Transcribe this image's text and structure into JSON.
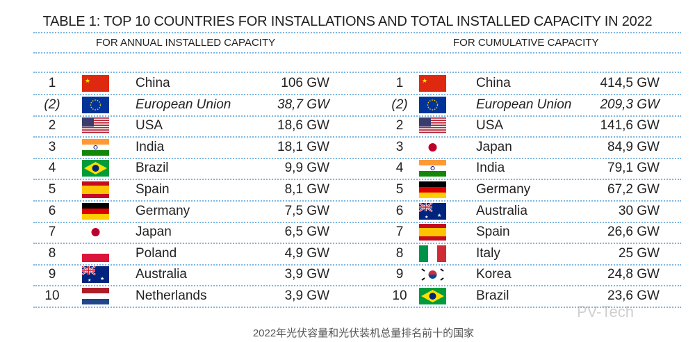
{
  "title": "TABLE 1: TOP 10 COUNTRIES FOR INSTALLATIONS AND TOTAL INSTALLED CAPACITY IN 2022",
  "annual": {
    "heading": "FOR ANNUAL INSTALLED CAPACITY",
    "rows": [
      {
        "rank": "1",
        "flag": "cn",
        "country": "China",
        "value": "106 GW"
      },
      {
        "rank": "(2)",
        "flag": "eu",
        "country": "European Union",
        "value": "38,7 GW",
        "italic": true
      },
      {
        "rank": "2",
        "flag": "us",
        "country": "USA",
        "value": "18,6 GW"
      },
      {
        "rank": "3",
        "flag": "in",
        "country": "India",
        "value": "18,1 GW"
      },
      {
        "rank": "4",
        "flag": "br",
        "country": "Brazil",
        "value": "9,9 GW"
      },
      {
        "rank": "5",
        "flag": "es",
        "country": "Spain",
        "value": "8,1 GW"
      },
      {
        "rank": "6",
        "flag": "de",
        "country": "Germany",
        "value": "7,5 GW"
      },
      {
        "rank": "7",
        "flag": "jp",
        "country": "Japan",
        "value": "6,5 GW"
      },
      {
        "rank": "8",
        "flag": "pl",
        "country": "Poland",
        "value": "4,9 GW"
      },
      {
        "rank": "9",
        "flag": "au",
        "country": "Australia",
        "value": "3,9 GW"
      },
      {
        "rank": "10",
        "flag": "nl",
        "country": "Netherlands",
        "value": "3,9 GW"
      }
    ]
  },
  "cumulative": {
    "heading": "FOR CUMULATIVE CAPACITY",
    "rows": [
      {
        "rank": "1",
        "flag": "cn",
        "country": "China",
        "value": "414,5 GW"
      },
      {
        "rank": "(2)",
        "flag": "eu",
        "country": "European Union",
        "value": "209,3 GW",
        "italic": true
      },
      {
        "rank": "2",
        "flag": "us",
        "country": "USA",
        "value": "141,6 GW"
      },
      {
        "rank": "3",
        "flag": "jp",
        "country": "Japan",
        "value": "84,9 GW"
      },
      {
        "rank": "4",
        "flag": "in",
        "country": "India",
        "value": "79,1 GW"
      },
      {
        "rank": "5",
        "flag": "de",
        "country": "Germany",
        "value": "67,2 GW"
      },
      {
        "rank": "6",
        "flag": "au",
        "country": "Australia",
        "value": "30 GW"
      },
      {
        "rank": "7",
        "flag": "es",
        "country": "Spain",
        "value": "26,6 GW"
      },
      {
        "rank": "8",
        "flag": "it",
        "country": "Italy",
        "value": "25 GW"
      },
      {
        "rank": "9",
        "flag": "kr",
        "country": "Korea",
        "value": "24,8 GW"
      },
      {
        "rank": "10",
        "flag": "br",
        "country": "Brazil",
        "value": "23,6 GW"
      }
    ]
  },
  "caption": "2022年光伏容量和光伏装机总量排名前十的国家",
  "watermark": "PV-Tech"
}
